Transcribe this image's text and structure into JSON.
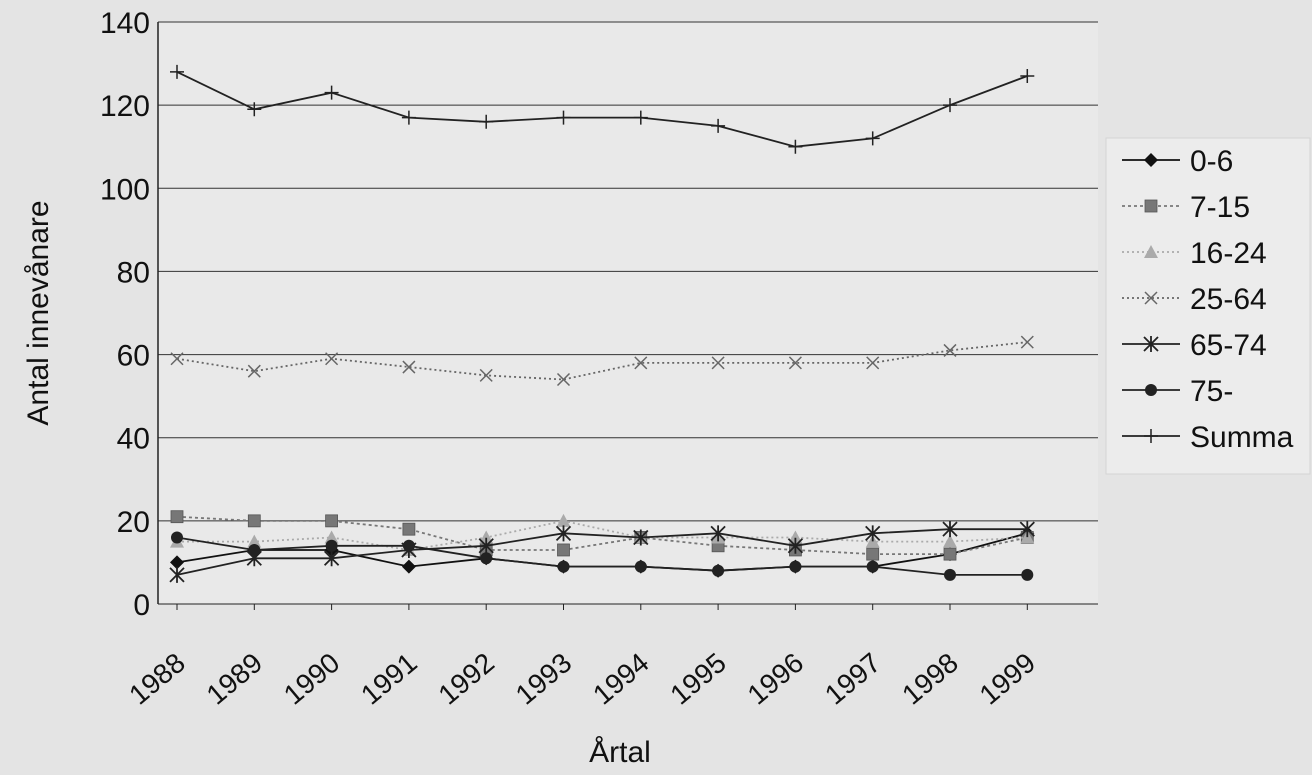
{
  "chart_data": {
    "type": "line",
    "title": "",
    "xlabel": "Årtal",
    "ylabel": "Antal innevånare",
    "x": [
      "1988",
      "1989",
      "1990",
      "1991",
      "1992",
      "1993",
      "1994",
      "1995",
      "1996",
      "1997",
      "1998",
      "1999"
    ],
    "ylim": [
      0,
      140
    ],
    "yticks": [
      "0",
      "20",
      "40",
      "60",
      "80",
      "100",
      "120",
      "140"
    ],
    "grid": "horizontal",
    "legend_position": "right",
    "series": [
      {
        "name": "0-6",
        "color": "#111111",
        "marker": "diamond",
        "dash": "none",
        "values": [
          10,
          13,
          13,
          9,
          11,
          9,
          9,
          8,
          9,
          9,
          12,
          17
        ]
      },
      {
        "name": "7-15",
        "color": "#777777",
        "marker": "square",
        "dash": "3,3",
        "values": [
          21,
          20,
          20,
          18,
          13,
          13,
          16,
          14,
          13,
          12,
          12,
          16
        ]
      },
      {
        "name": "16-24",
        "color": "#aaaaaa",
        "marker": "triangle",
        "dash": "2,3",
        "values": [
          15,
          15,
          16,
          13,
          16,
          20,
          16,
          16,
          16,
          15,
          15,
          16
        ]
      },
      {
        "name": "25-64",
        "color": "#666666",
        "marker": "x",
        "dash": "2,3",
        "values": [
          59,
          56,
          59,
          57,
          55,
          54,
          58,
          58,
          58,
          58,
          61,
          63
        ]
      },
      {
        "name": "65-74",
        "color": "#222222",
        "marker": "asterisk",
        "dash": "none",
        "values": [
          7,
          11,
          11,
          13,
          14,
          17,
          16,
          17,
          14,
          17,
          18,
          18
        ]
      },
      {
        "name": "75-",
        "color": "#222222",
        "marker": "circle",
        "dash": "none",
        "values": [
          16,
          13,
          14,
          14,
          11,
          9,
          9,
          8,
          9,
          9,
          7,
          7
        ]
      },
      {
        "name": "Summa",
        "color": "#222222",
        "marker": "plus",
        "dash": "none",
        "values": [
          128,
          119,
          123,
          117,
          116,
          117,
          117,
          115,
          110,
          112,
          120,
          127
        ]
      }
    ]
  }
}
